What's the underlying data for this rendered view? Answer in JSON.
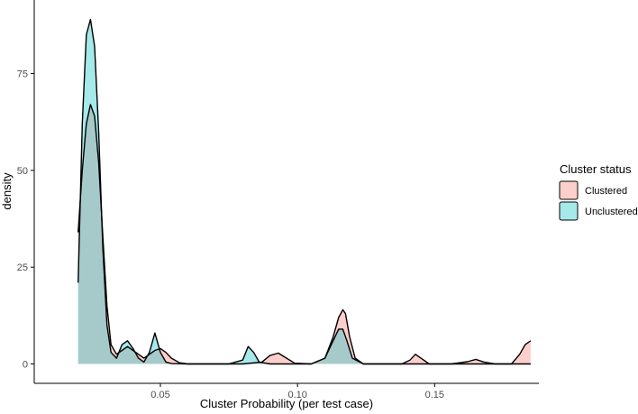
{
  "chart_data": {
    "type": "area",
    "xlabel": "Cluster Probability (per test case)",
    "ylabel": "density",
    "xlim": [
      0.004,
      0.188
    ],
    "ylim": [
      -5,
      94
    ],
    "x_ticks": [
      0.05,
      0.1,
      0.15
    ],
    "x_tick_labels": [
      "0.05",
      "0.10",
      "0.15"
    ],
    "y_ticks": [
      0,
      25,
      50,
      75
    ],
    "y_tick_labels": [
      "0",
      "25",
      "50",
      "75"
    ],
    "grid": false,
    "legend": {
      "title": "Cluster status",
      "position": "right",
      "entries": [
        "Clustered",
        "Unclustered"
      ]
    },
    "series": [
      {
        "name": "Clustered",
        "fill": "#F8766D",
        "fill_opacity": 0.35,
        "stroke": "#000000",
        "x": [
          0.02,
          0.0215,
          0.023,
          0.0245,
          0.026,
          0.0275,
          0.029,
          0.0305,
          0.032,
          0.034,
          0.036,
          0.038,
          0.04,
          0.042,
          0.044,
          0.046,
          0.048,
          0.05,
          0.052,
          0.054,
          0.057,
          0.06,
          0.07,
          0.08,
          0.087,
          0.09,
          0.093,
          0.096,
          0.099,
          0.105,
          0.11,
          0.113,
          0.115,
          0.1165,
          0.1175,
          0.119,
          0.121,
          0.124,
          0.13,
          0.138,
          0.141,
          0.143,
          0.145,
          0.148,
          0.156,
          0.162,
          0.165,
          0.168,
          0.172,
          0.178,
          0.181,
          0.183,
          0.185
        ],
        "y": [
          34,
          50,
          62,
          67,
          64,
          52,
          33,
          15,
          5,
          2.5,
          3.5,
          4.5,
          3.5,
          2.5,
          1.5,
          2.5,
          3.5,
          4,
          3,
          1.5,
          0.3,
          0,
          0,
          0,
          0.5,
          2.2,
          2.8,
          1.5,
          0.2,
          0,
          1.5,
          7,
          12,
          14,
          13,
          7,
          1.5,
          0,
          0,
          0,
          1,
          2.5,
          1.5,
          0,
          0,
          0.6,
          1.2,
          0.5,
          0,
          0,
          2.5,
          5,
          6
        ]
      },
      {
        "name": "Unclustered",
        "fill": "#00BFC4",
        "fill_opacity": 0.35,
        "stroke": "#000000",
        "x": [
          0.02,
          0.0215,
          0.023,
          0.0245,
          0.026,
          0.0275,
          0.029,
          0.0305,
          0.032,
          0.034,
          0.036,
          0.038,
          0.04,
          0.042,
          0.044,
          0.046,
          0.048,
          0.05,
          0.052,
          0.054,
          0.06,
          0.075,
          0.08,
          0.082,
          0.084,
          0.086,
          0.09,
          0.105,
          0.11,
          0.113,
          0.115,
          0.1165,
          0.118,
          0.12,
          0.124,
          0.13,
          0.185
        ],
        "y": [
          21,
          62,
          85,
          89,
          82,
          60,
          30,
          10,
          3,
          1.5,
          5,
          6,
          4,
          1.5,
          0.5,
          3,
          8,
          3,
          0.5,
          0.1,
          0,
          0,
          1,
          4.5,
          3,
          0.5,
          0,
          0,
          1.5,
          6,
          9,
          9,
          6,
          1.5,
          0,
          0,
          0
        ]
      }
    ]
  }
}
